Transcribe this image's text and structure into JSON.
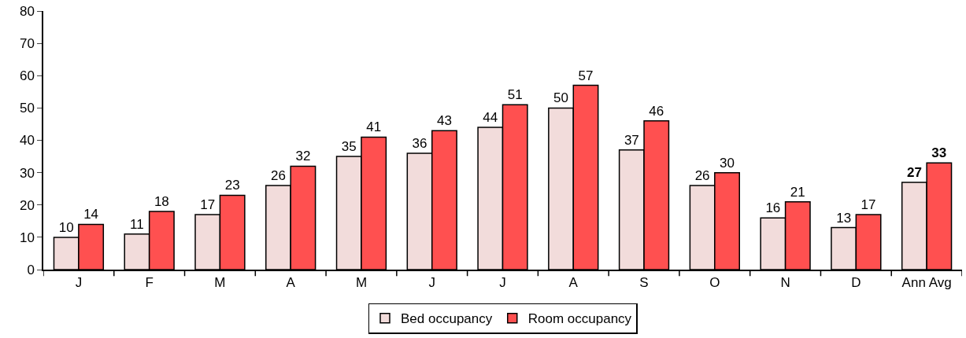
{
  "chart_data": {
    "type": "bar",
    "categories": [
      "J",
      "F",
      "M",
      "A",
      "M",
      "J",
      "J",
      "A",
      "S",
      "O",
      "N",
      "D",
      "Ann Avg"
    ],
    "series": [
      {
        "name": "Bed occupancy",
        "color": "#f2dcdb",
        "values": [
          10,
          11,
          17,
          26,
          35,
          36,
          44,
          50,
          37,
          26,
          16,
          13,
          27
        ]
      },
      {
        "name": "Room occupancy",
        "color": "#ff5050",
        "values": [
          14,
          18,
          23,
          32,
          41,
          43,
          51,
          57,
          46,
          30,
          21,
          17,
          33
        ]
      }
    ],
    "ylim": [
      0,
      80
    ],
    "yticks": [
      0,
      10,
      20,
      30,
      40,
      50,
      60,
      70,
      80
    ],
    "data_labels": true,
    "legend": "bottom"
  }
}
